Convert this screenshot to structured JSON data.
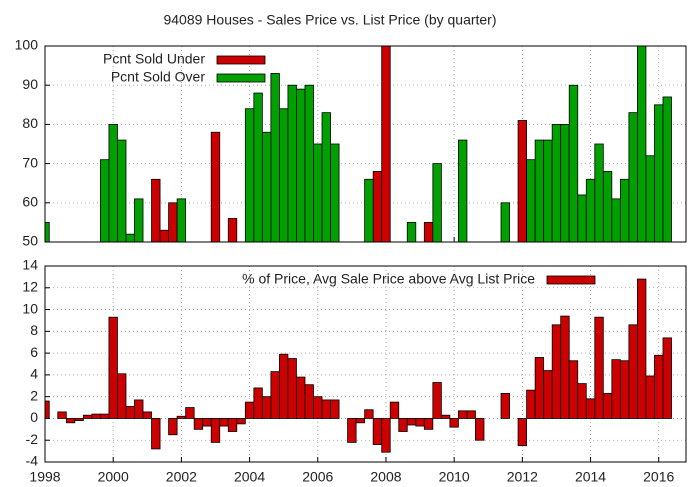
{
  "chart_data": [
    {
      "type": "bar",
      "title": "94089 Houses - Sales Price vs. List Price (by quarter)",
      "x": [
        1998,
        1998.25,
        1998.5,
        1998.75,
        1999,
        1999.25,
        1999.5,
        1999.75,
        2000,
        2000.25,
        2000.5,
        2000.75,
        2001,
        2001.25,
        2001.5,
        2001.75,
        2002,
        2002.25,
        2002.5,
        2002.75,
        2003,
        2003.25,
        2003.5,
        2003.75,
        2004,
        2004.25,
        2004.5,
        2004.75,
        2005,
        2005.25,
        2005.5,
        2005.75,
        2006,
        2006.25,
        2006.5,
        2006.75,
        2007,
        2007.25,
        2007.5,
        2007.75,
        2008,
        2008.25,
        2008.5,
        2008.75,
        2009,
        2009.25,
        2009.5,
        2009.75,
        2010,
        2010.25,
        2010.5,
        2010.75,
        2011,
        2011.25,
        2011.5,
        2011.75,
        2012,
        2012.25,
        2012.5,
        2012.75,
        2013,
        2013.25,
        2013.5,
        2013.75,
        2014,
        2014.25,
        2014.5,
        2014.75,
        2015,
        2015.25,
        2015.5,
        2015.75,
        2016,
        2016.25
      ],
      "series": [
        {
          "name": "Pcnt Sold Under",
          "color": "#cc0000",
          "values": [
            null,
            null,
            null,
            null,
            null,
            null,
            null,
            null,
            null,
            null,
            null,
            null,
            null,
            66,
            53,
            60,
            null,
            null,
            null,
            null,
            78,
            null,
            56,
            null,
            null,
            null,
            null,
            null,
            null,
            null,
            null,
            null,
            null,
            null,
            null,
            null,
            null,
            null,
            null,
            68,
            100,
            null,
            null,
            null,
            null,
            55,
            null,
            null,
            null,
            null,
            null,
            null,
            null,
            null,
            null,
            null,
            81,
            null,
            null,
            null,
            null,
            null,
            null,
            null,
            null,
            null,
            null,
            null,
            null,
            null,
            null,
            null,
            null,
            null
          ]
        },
        {
          "name": "Pcnt Sold Over",
          "color": "#00a000",
          "values": [
            55,
            null,
            null,
            null,
            null,
            null,
            null,
            71,
            80,
            76,
            52,
            61,
            null,
            null,
            null,
            null,
            61,
            null,
            null,
            null,
            null,
            null,
            null,
            null,
            84,
            88,
            78,
            93,
            84,
            90,
            89,
            90,
            75,
            83,
            75,
            null,
            null,
            null,
            66,
            null,
            null,
            null,
            null,
            55,
            null,
            null,
            70,
            null,
            null,
            76,
            null,
            null,
            null,
            null,
            60,
            null,
            null,
            71,
            76,
            76,
            80,
            80,
            90,
            62,
            66,
            75,
            68,
            61,
            66,
            83,
            100,
            72,
            85,
            87
          ]
        }
      ],
      "xlim": [
        1998,
        2016.8
      ],
      "xticks": [
        1998,
        2000,
        2002,
        2004,
        2006,
        2008,
        2010,
        2012,
        2014,
        2016
      ],
      "ylim": [
        50,
        100
      ],
      "yticks": [
        50,
        60,
        70,
        80,
        90,
        100
      ],
      "grid": true,
      "legend": "top-left"
    },
    {
      "type": "bar",
      "x": [
        1998,
        1998.25,
        1998.5,
        1998.75,
        1999,
        1999.25,
        1999.5,
        1999.75,
        2000,
        2000.25,
        2000.5,
        2000.75,
        2001,
        2001.25,
        2001.5,
        2001.75,
        2002,
        2002.25,
        2002.5,
        2002.75,
        2003,
        2003.25,
        2003.5,
        2003.75,
        2004,
        2004.25,
        2004.5,
        2004.75,
        2005,
        2005.25,
        2005.5,
        2005.75,
        2006,
        2006.25,
        2006.5,
        2006.75,
        2007,
        2007.25,
        2007.5,
        2007.75,
        2008,
        2008.25,
        2008.5,
        2008.75,
        2009,
        2009.25,
        2009.5,
        2009.75,
        2010,
        2010.25,
        2010.5,
        2010.75,
        2011,
        2011.25,
        2011.5,
        2011.75,
        2012,
        2012.25,
        2012.5,
        2012.75,
        2013,
        2013.25,
        2013.5,
        2013.75,
        2014,
        2014.25,
        2014.5,
        2014.75,
        2015,
        2015.25,
        2015.5,
        2015.75,
        2016,
        2016.25
      ],
      "series": [
        {
          "name": "% of Price, Avg Sale Price above Avg List Price",
          "color": "#cc0000",
          "values": [
            1.6,
            0,
            0.6,
            -0.4,
            -0.2,
            0.3,
            0.4,
            0.4,
            9.3,
            4.1,
            1.1,
            1.7,
            0.6,
            -2.8,
            0,
            -1.5,
            0.2,
            1.0,
            -1.0,
            -0.7,
            -2.2,
            -0.7,
            -1.2,
            -0.5,
            1.5,
            2.8,
            2.0,
            4.3,
            5.9,
            5.5,
            3.8,
            3.1,
            2.0,
            1.7,
            1.7,
            0,
            -2.2,
            -0.4,
            0.8,
            -2.4,
            -3.1,
            1.5,
            -1.2,
            -0.6,
            -0.7,
            -1.0,
            3.3,
            0.3,
            -0.8,
            0.7,
            0.7,
            -2.0,
            0,
            0,
            2.3,
            0,
            -2.5,
            2.6,
            5.6,
            4.4,
            8.6,
            9.4,
            5.3,
            3.2,
            1.8,
            9.3,
            2.3,
            5.4,
            5.3,
            8.6,
            12.8,
            3.9,
            5.8,
            7.4
          ]
        }
      ],
      "xlim": [
        1998,
        2016.8
      ],
      "xticks": [
        1998,
        2000,
        2002,
        2004,
        2006,
        2008,
        2010,
        2012,
        2014,
        2016
      ],
      "ylim": [
        -4,
        14
      ],
      "yticks": [
        -4,
        -2,
        0,
        2,
        4,
        6,
        8,
        10,
        12,
        14
      ],
      "grid": true,
      "legend": "top-right"
    }
  ]
}
